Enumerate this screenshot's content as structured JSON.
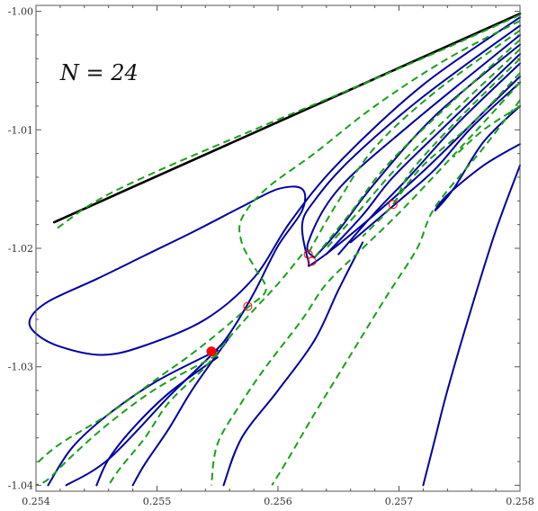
{
  "chart_data": {
    "type": "line",
    "title": "",
    "xlabel": "",
    "ylabel": "",
    "xlim": [
      0.254,
      0.258
    ],
    "ylim": [
      -1.0405,
      -0.9995
    ],
    "frame": "full",
    "grid": false,
    "x_ticks": [
      {
        "value": 0.254,
        "label": "0.254"
      },
      {
        "value": 0.255,
        "label": "0.255"
      },
      {
        "value": 0.256,
        "label": "0.256"
      },
      {
        "value": 0.257,
        "label": "0.257"
      },
      {
        "value": 0.258,
        "label": "0.258"
      }
    ],
    "y_ticks": [
      {
        "value": -1.0,
        "label": "-1.00"
      },
      {
        "value": -1.01,
        "label": "-1.01"
      },
      {
        "value": -1.02,
        "label": "-1.02"
      },
      {
        "value": -1.03,
        "label": "-1.03"
      },
      {
        "value": -1.04,
        "label": "-1.04"
      }
    ],
    "annotation": {
      "text": "N = 24",
      "x": 0.2542,
      "y": -1.0058
    },
    "colors": {
      "boundary": "#000000",
      "solid": "#0000a0",
      "dashed": "#1aa01a",
      "marker": "#ff0000"
    },
    "series": [
      {
        "style": "boundary",
        "points": [
          [
            0.25415,
            -1.0178
          ],
          [
            0.258,
            -1.0002
          ]
        ]
      },
      {
        "style": "solid",
        "points": [
          [
            0.258,
            -1.0005
          ],
          [
            0.2572,
            -1.0062
          ],
          [
            0.2565,
            -1.0128
          ],
          [
            0.2561,
            -1.0178
          ],
          [
            0.2558,
            -1.0225
          ],
          [
            0.2554,
            -1.026
          ],
          [
            0.2549,
            -1.0282
          ],
          [
            0.25455,
            -1.029
          ],
          [
            0.2542,
            -1.0283
          ],
          [
            0.254,
            -1.0272
          ],
          [
            0.25395,
            -1.026
          ],
          [
            0.2541,
            -1.0245
          ],
          [
            0.2545,
            -1.0226
          ],
          [
            0.2549,
            -1.0206
          ],
          [
            0.2553,
            -1.0186
          ],
          [
            0.2557,
            -1.0165
          ],
          [
            0.256,
            -1.015
          ],
          [
            0.2562,
            -1.015
          ],
          [
            0.2562,
            -1.0168
          ],
          [
            0.256,
            -1.0198
          ],
          [
            0.2558,
            -1.0238
          ],
          [
            0.2556,
            -1.0272
          ],
          [
            0.25545,
            -1.029
          ],
          [
            0.2551,
            -1.0325
          ],
          [
            0.2546,
            -1.0378
          ],
          [
            0.25425,
            -1.04
          ]
        ]
      },
      {
        "style": "solid",
        "points": [
          [
            0.258,
            -1.0012
          ],
          [
            0.2572,
            -1.0072
          ],
          [
            0.2566,
            -1.0125
          ],
          [
            0.2563,
            -1.016
          ],
          [
            0.2562,
            -1.018
          ],
          [
            0.25625,
            -1.021
          ],
          [
            0.2563,
            -1.0212
          ],
          [
            0.2567,
            -1.018
          ],
          [
            0.2572,
            -1.0135
          ],
          [
            0.2577,
            -1.0085
          ],
          [
            0.258,
            -1.0055
          ]
        ]
      },
      {
        "style": "solid",
        "points": [
          [
            0.258,
            -1.002
          ],
          [
            0.2571,
            -1.0095
          ],
          [
            0.2565,
            -1.015
          ],
          [
            0.25625,
            -1.0195
          ],
          [
            0.2563,
            -1.0208
          ]
        ]
      },
      {
        "style": "solid",
        "points": [
          [
            0.258,
            -1.0028
          ],
          [
            0.2573,
            -1.0088
          ],
          [
            0.2568,
            -1.0145
          ],
          [
            0.2565,
            -1.0185
          ],
          [
            0.2563,
            -1.0208
          ]
        ]
      },
      {
        "style": "solid",
        "points": [
          [
            0.258,
            -1.0036
          ],
          [
            0.2574,
            -1.0095
          ],
          [
            0.25695,
            -1.014
          ],
          [
            0.2567,
            -1.0172
          ],
          [
            0.2564,
            -1.0205
          ]
        ]
      },
      {
        "style": "solid",
        "points": [
          [
            0.258,
            -1.0044
          ],
          [
            0.2575,
            -1.0093
          ],
          [
            0.2571,
            -1.0138
          ],
          [
            0.2568,
            -1.017
          ],
          [
            0.2565,
            -1.0205
          ]
        ]
      },
      {
        "style": "solid",
        "points": [
          [
            0.258,
            -1.006
          ],
          [
            0.2576,
            -1.0098
          ],
          [
            0.2573,
            -1.0133
          ],
          [
            0.257,
            -1.016
          ],
          [
            0.2566,
            -1.0195
          ]
        ]
      },
      {
        "style": "solid",
        "points": [
          [
            0.258,
            -1.008
          ],
          [
            0.2577,
            -1.011
          ],
          [
            0.25745,
            -1.015
          ],
          [
            0.2573,
            -1.0168
          ],
          [
            0.2574,
            -1.0155
          ],
          [
            0.2577,
            -1.013
          ],
          [
            0.258,
            -1.0112
          ]
        ]
      },
      {
        "style": "solid",
        "points": [
          [
            0.258,
            -1.013
          ],
          [
            0.2578,
            -1.0185
          ],
          [
            0.2576,
            -1.025
          ],
          [
            0.2574,
            -1.032
          ],
          [
            0.2573,
            -1.036
          ],
          [
            0.2572,
            -1.04
          ]
        ]
      },
      {
        "style": "solid",
        "points": [
          [
            0.2567,
            -1.0195
          ],
          [
            0.2565,
            -1.0235
          ],
          [
            0.2563,
            -1.0278
          ],
          [
            0.256,
            -1.032
          ],
          [
            0.2557,
            -1.036
          ],
          [
            0.25555,
            -1.04
          ]
        ]
      },
      {
        "style": "solid",
        "points": [
          [
            0.2556,
            -1.0275
          ],
          [
            0.2553,
            -1.0318
          ],
          [
            0.2551,
            -1.0352
          ],
          [
            0.2549,
            -1.0382
          ],
          [
            0.2548,
            -1.04
          ]
        ]
      },
      {
        "style": "solid",
        "points": [
          [
            0.2555,
            -1.0292
          ],
          [
            0.2551,
            -1.0322
          ],
          [
            0.2548,
            -1.0352
          ],
          [
            0.2546,
            -1.0378
          ],
          [
            0.2545,
            -1.04
          ]
        ]
      },
      {
        "style": "solid",
        "points": [
          [
            0.2555,
            -1.0286
          ],
          [
            0.255,
            -1.0312
          ],
          [
            0.2546,
            -1.034
          ],
          [
            0.2543,
            -1.0368
          ],
          [
            0.2541,
            -1.04
          ]
        ]
      },
      {
        "style": "dashed",
        "points": [
          [
            0.258,
            -1.0003
          ],
          [
            0.2573,
            -1.0035
          ],
          [
            0.2565,
            -1.007
          ],
          [
            0.2558,
            -1.01
          ],
          [
            0.255,
            -1.0135
          ],
          [
            0.2545,
            -1.016
          ],
          [
            0.25415,
            -1.0185
          ]
        ]
      },
      {
        "style": "dashed",
        "points": [
          [
            0.258,
            -1.0008
          ],
          [
            0.2574,
            -1.004
          ],
          [
            0.2568,
            -1.008
          ],
          [
            0.2563,
            -1.012
          ],
          [
            0.2559,
            -1.015
          ],
          [
            0.2557,
            -1.0175
          ],
          [
            0.2557,
            -1.0195
          ],
          [
            0.2558,
            -1.0215
          ],
          [
            0.2559,
            -1.0235
          ],
          [
            0.25575,
            -1.025
          ],
          [
            0.2555,
            -1.0272
          ],
          [
            0.25525,
            -1.0292
          ],
          [
            0.255,
            -1.031
          ],
          [
            0.2546,
            -1.034
          ],
          [
            0.2542,
            -1.0365
          ],
          [
            0.254,
            -1.0382
          ]
        ]
      },
      {
        "style": "dashed",
        "points": [
          [
            0.258,
            -1.0016
          ],
          [
            0.2573,
            -1.0068
          ],
          [
            0.2568,
            -1.0115
          ],
          [
            0.2565,
            -1.016
          ],
          [
            0.2563,
            -1.0195
          ],
          [
            0.25625,
            -1.0205
          ]
        ]
      },
      {
        "style": "dashed",
        "points": [
          [
            0.258,
            -1.0024
          ],
          [
            0.2574,
            -1.008
          ],
          [
            0.2569,
            -1.013
          ],
          [
            0.2566,
            -1.017
          ],
          [
            0.2563,
            -1.0208
          ]
        ]
      },
      {
        "style": "dashed",
        "points": [
          [
            0.258,
            -1.0032
          ],
          [
            0.2575,
            -1.008
          ],
          [
            0.257,
            -1.013
          ],
          [
            0.2567,
            -1.0165
          ],
          [
            0.2564,
            -1.02
          ]
        ]
      },
      {
        "style": "dashed",
        "points": [
          [
            0.258,
            -1.004
          ],
          [
            0.2575,
            -1.009
          ],
          [
            0.2571,
            -1.0135
          ],
          [
            0.25695,
            -1.0163
          ],
          [
            0.2567,
            -1.019
          ]
        ]
      },
      {
        "style": "dashed",
        "points": [
          [
            0.258,
            -1.0052
          ],
          [
            0.2576,
            -1.0095
          ],
          [
            0.2572,
            -1.013
          ],
          [
            0.25695,
            -1.0163
          ]
        ]
      },
      {
        "style": "dashed",
        "points": [
          [
            0.258,
            -1.008
          ],
          [
            0.2577,
            -1.01
          ],
          [
            0.25745,
            -1.0123
          ]
        ]
      },
      {
        "style": "dashed",
        "points": [
          [
            0.258,
            -1.006
          ],
          [
            0.2576,
            -1.0105
          ],
          [
            0.25705,
            -1.0165
          ],
          [
            0.2567,
            -1.02
          ],
          [
            0.2564,
            -1.023
          ],
          [
            0.2562,
            -1.026
          ],
          [
            0.2559,
            -1.03
          ],
          [
            0.2557,
            -1.033
          ],
          [
            0.2555,
            -1.0365
          ],
          [
            0.25545,
            -1.04
          ]
        ]
      },
      {
        "style": "dashed",
        "points": [
          [
            0.258,
            -1.0075
          ],
          [
            0.2577,
            -1.0115
          ],
          [
            0.2573,
            -1.0165
          ],
          [
            0.25715,
            -1.02
          ],
          [
            0.2569,
            -1.024
          ],
          [
            0.2566,
            -1.029
          ],
          [
            0.2563,
            -1.034
          ],
          [
            0.2561,
            -1.0375
          ],
          [
            0.25595,
            -1.04
          ]
        ]
      },
      {
        "style": "dashed",
        "points": [
          [
            0.2562,
            -1.0205
          ],
          [
            0.256,
            -1.023
          ],
          [
            0.2558,
            -1.0252
          ],
          [
            0.2556,
            -1.0275
          ],
          [
            0.2554,
            -1.03
          ],
          [
            0.2551,
            -1.033
          ],
          [
            0.2549,
            -1.036
          ],
          [
            0.2547,
            -1.0385
          ],
          [
            0.2546,
            -1.04
          ]
        ]
      },
      {
        "style": "dashed",
        "points": [
          [
            0.2555,
            -1.029
          ],
          [
            0.255,
            -1.0318
          ],
          [
            0.2546,
            -1.0348
          ],
          [
            0.2543,
            -1.0375
          ],
          [
            0.2541,
            -1.0395
          ],
          [
            0.254,
            -1.04
          ]
        ]
      }
    ],
    "markers": [
      {
        "x": 0.25545,
        "y": -1.0287,
        "filled": true
      },
      {
        "x": 0.25575,
        "y": -1.0249,
        "filled": false
      },
      {
        "x": 0.25625,
        "y": -1.0205,
        "filled": false
      },
      {
        "x": 0.25628,
        "y": -1.0211,
        "filled": false
      },
      {
        "x": 0.25695,
        "y": -1.0163,
        "filled": false
      }
    ]
  }
}
